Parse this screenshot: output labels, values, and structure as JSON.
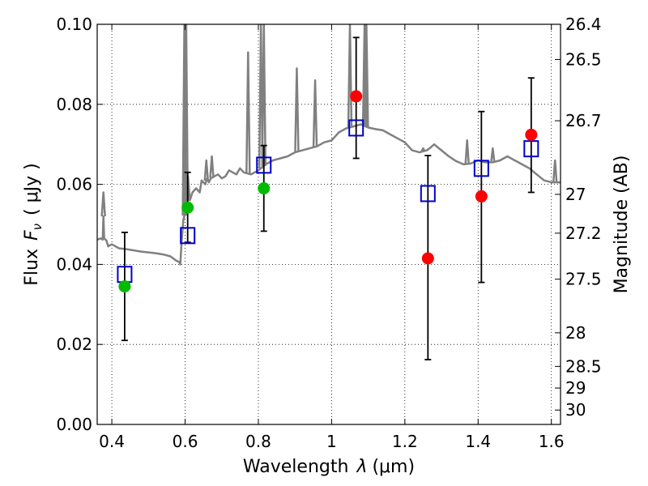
{
  "chart_data": {
    "type": "scatter",
    "xlabel_prefix": "Wavelength",
    "xlabel_symbol": "λ",
    "xlabel_unit": "(μm)",
    "ylabel_prefix": "Flux",
    "ylabel_symbol": "F",
    "ylabel_subscript": "ν",
    "ylabel_unit": "( μJy )",
    "ylabel_right": "Magnitude (AB)",
    "xlim": [
      0.36,
      1.625
    ],
    "ylim": [
      0.0,
      0.1
    ],
    "x_ticks": [
      {
        "value": 0.4,
        "label": "0.4"
      },
      {
        "value": 0.6,
        "label": "0.6"
      },
      {
        "value": 0.8,
        "label": "0.8"
      },
      {
        "value": 1.0,
        "label": "1"
      },
      {
        "value": 1.2,
        "label": "1.2"
      },
      {
        "value": 1.4,
        "label": "1.4"
      },
      {
        "value": 1.6,
        "label": "1.6"
      }
    ],
    "y_ticks": [
      {
        "value": 0.0,
        "label": "0.00"
      },
      {
        "value": 0.02,
        "label": "0.02"
      },
      {
        "value": 0.04,
        "label": "0.04"
      },
      {
        "value": 0.06,
        "label": "0.06"
      },
      {
        "value": 0.08,
        "label": "0.08"
      },
      {
        "value": 0.1,
        "label": "0.10"
      }
    ],
    "magnitude_ticks": [
      {
        "flux": 0.1,
        "label": "26.4"
      },
      {
        "flux": 0.0912,
        "label": "26.5"
      },
      {
        "flux": 0.0759,
        "label": "26.7"
      },
      {
        "flux": 0.0575,
        "label": "27"
      },
      {
        "flux": 0.0478,
        "label": "27.2"
      },
      {
        "flux": 0.0363,
        "label": "27.5"
      },
      {
        "flux": 0.0229,
        "label": "28"
      },
      {
        "flux": 0.0145,
        "label": "28.5"
      },
      {
        "flux": 0.0091,
        "label": "29"
      },
      {
        "flux": 0.0036,
        "label": "30"
      }
    ],
    "grid": true,
    "series": [
      {
        "name": "model spectrum",
        "style": "line",
        "color": "#808080",
        "points": [
          [
            0.36,
            0.0462
          ],
          [
            0.37,
            0.0465
          ],
          [
            0.375,
            0.0462
          ],
          [
            0.377,
            0.052
          ],
          [
            0.379,
            0.0465
          ],
          [
            0.385,
            0.046
          ],
          [
            0.39,
            0.0445
          ],
          [
            0.395,
            0.0448
          ],
          [
            0.4,
            0.045
          ],
          [
            0.42,
            0.044
          ],
          [
            0.44,
            0.0438
          ],
          [
            0.46,
            0.0435
          ],
          [
            0.48,
            0.0432
          ],
          [
            0.5,
            0.043
          ],
          [
            0.52,
            0.0428
          ],
          [
            0.54,
            0.0425
          ],
          [
            0.56,
            0.042
          ],
          [
            0.575,
            0.041
          ],
          [
            0.585,
            0.0405
          ],
          [
            0.587,
            0.04
          ],
          [
            0.59,
            0.045
          ],
          [
            0.595,
            0.051
          ],
          [
            0.6,
            0.053
          ],
          [
            0.605,
            0.054
          ],
          [
            0.608,
            0.062
          ],
          [
            0.613,
            0.056
          ],
          [
            0.62,
            0.058
          ],
          [
            0.63,
            0.059
          ],
          [
            0.64,
            0.058
          ],
          [
            0.645,
            0.061
          ],
          [
            0.655,
            0.06
          ],
          [
            0.66,
            0.0615
          ],
          [
            0.665,
            0.0605
          ],
          [
            0.67,
            0.0615
          ],
          [
            0.68,
            0.062
          ],
          [
            0.69,
            0.0625
          ],
          [
            0.7,
            0.0615
          ],
          [
            0.71,
            0.062
          ],
          [
            0.72,
            0.0635
          ],
          [
            0.73,
            0.063
          ],
          [
            0.74,
            0.0625
          ],
          [
            0.75,
            0.064
          ],
          [
            0.76,
            0.063
          ],
          [
            0.78,
            0.0625
          ],
          [
            0.8,
            0.0635
          ],
          [
            0.82,
            0.065
          ],
          [
            0.84,
            0.066
          ],
          [
            0.86,
            0.0665
          ],
          [
            0.88,
            0.067
          ],
          [
            0.9,
            0.068
          ],
          [
            0.92,
            0.0685
          ],
          [
            0.94,
            0.069
          ],
          [
            0.96,
            0.0695
          ],
          [
            0.98,
            0.0705
          ],
          [
            1.0,
            0.071
          ],
          [
            1.02,
            0.073
          ],
          [
            1.04,
            0.074
          ],
          [
            1.06,
            0.0745
          ],
          [
            1.08,
            0.075
          ],
          [
            1.1,
            0.0742
          ],
          [
            1.12,
            0.0738
          ],
          [
            1.14,
            0.0735
          ],
          [
            1.16,
            0.0725
          ],
          [
            1.18,
            0.0715
          ],
          [
            1.2,
            0.0705
          ],
          [
            1.21,
            0.0695
          ],
          [
            1.22,
            0.0685
          ],
          [
            1.24,
            0.068
          ],
          [
            1.26,
            0.0685
          ],
          [
            1.27,
            0.0692
          ],
          [
            1.28,
            0.07
          ],
          [
            1.3,
            0.0685
          ],
          [
            1.32,
            0.067
          ],
          [
            1.34,
            0.0658
          ],
          [
            1.36,
            0.065
          ],
          [
            1.38,
            0.0652
          ],
          [
            1.4,
            0.066
          ],
          [
            1.42,
            0.0655
          ],
          [
            1.44,
            0.0655
          ],
          [
            1.46,
            0.066
          ],
          [
            1.48,
            0.067
          ],
          [
            1.5,
            0.066
          ],
          [
            1.52,
            0.065
          ],
          [
            1.54,
            0.064
          ],
          [
            1.56,
            0.0625
          ],
          [
            1.58,
            0.061
          ],
          [
            1.6,
            0.0605
          ],
          [
            1.625,
            0.0605
          ]
        ]
      },
      {
        "name": "emission lines",
        "style": "spikes",
        "color": "#808080",
        "peaks": [
          [
            0.377,
            0.058
          ],
          [
            0.598,
            0.1
          ],
          [
            0.603,
            0.1
          ],
          [
            0.658,
            0.066
          ],
          [
            0.673,
            0.067
          ],
          [
            0.772,
            0.093
          ],
          [
            0.807,
            0.1
          ],
          [
            0.815,
            0.1
          ],
          [
            0.905,
            0.089
          ],
          [
            0.955,
            0.086
          ],
          [
            1.05,
            0.1
          ],
          [
            1.09,
            0.1
          ],
          [
            1.095,
            0.1
          ],
          [
            1.25,
            0.069
          ],
          [
            1.37,
            0.071
          ],
          [
            1.44,
            0.069
          ],
          [
            1.61,
            0.066
          ]
        ]
      },
      {
        "name": "model photometry",
        "style": "open-square",
        "color": "#0000cc",
        "points": [
          [
            0.435,
            0.0375
          ],
          [
            0.607,
            0.0472
          ],
          [
            0.815,
            0.0648
          ],
          [
            1.067,
            0.0741
          ],
          [
            1.263,
            0.0577
          ],
          [
            1.409,
            0.064
          ],
          [
            1.545,
            0.0689
          ]
        ]
      },
      {
        "name": "observed photometry (detections)",
        "style": "filled-circle",
        "color": "#00bb00",
        "points": [
          [
            0.435,
            0.0345
          ],
          [
            0.607,
            0.0542
          ],
          [
            0.815,
            0.059
          ]
        ]
      },
      {
        "name": "observed photometry (red)",
        "style": "filled-circle",
        "color": "#ff0000",
        "points": [
          [
            1.067,
            0.082
          ],
          [
            1.263,
            0.0415
          ],
          [
            1.409,
            0.057
          ],
          [
            1.545,
            0.0724
          ]
        ]
      },
      {
        "name": "uncertainties",
        "style": "errorbar",
        "color": "#000000",
        "bars": [
          [
            0.435,
            0.021,
            0.048
          ],
          [
            0.607,
            0.0455,
            0.063
          ],
          [
            0.815,
            0.0483,
            0.0697
          ],
          [
            1.067,
            0.0665,
            0.0967
          ],
          [
            1.263,
            0.0162,
            0.0672
          ],
          [
            1.409,
            0.0355,
            0.0782
          ],
          [
            1.545,
            0.058,
            0.0866
          ]
        ]
      }
    ]
  }
}
